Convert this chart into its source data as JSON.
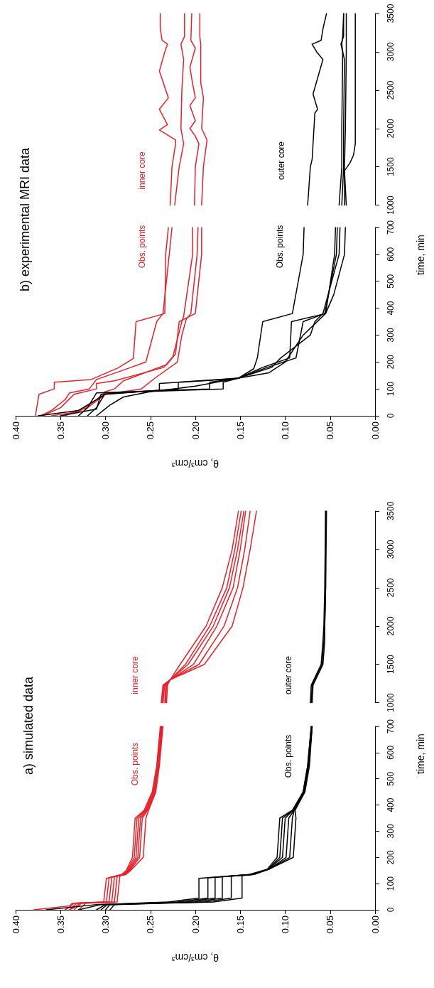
{
  "chart_data": [
    {
      "type": "line",
      "title": "a) simulated data",
      "xlabel": "θ, cm³/cm³",
      "ylabel": "time, min",
      "marker": "none",
      "xlim": [
        0.4,
        0
      ],
      "ylim": [
        0,
        700
      ],
      "yticks": [
        0,
        100,
        200,
        300,
        400,
        500,
        600,
        700
      ],
      "xticks": [
        {
          "value": 0,
          "label": "0.00"
        },
        {
          "value": 0.05,
          "label": "0.05"
        },
        {
          "value": 0.1,
          "label": "0.10"
        },
        {
          "value": 0.15,
          "label": "0.15"
        },
        {
          "value": 0.2,
          "label": "0.20"
        },
        {
          "value": 0.25,
          "label": "0.25"
        },
        {
          "value": 0.3,
          "label": "0.30"
        },
        {
          "value": 0.35,
          "label": "0.35"
        },
        {
          "value": 0.4,
          "label": "0.40"
        }
      ],
      "annotations": [
        "Obs. points",
        "Obs. points"
      ],
      "series": [
        {
          "color": "#e8202a",
          "values": [
            0,
            15,
            25,
            30,
            120,
            135,
            150,
            200,
            350,
            380,
            450,
            550,
            700
          ],
          "x": [
            0.38,
            0.34,
            0.337,
            0.302,
            0.299,
            0.282,
            0.277,
            0.27,
            0.267,
            0.257,
            0.248,
            0.243,
            0.239
          ]
        },
        {
          "color": "#e8202a",
          "values": [
            0,
            15,
            25,
            30,
            122,
            135,
            150,
            200,
            350,
            380,
            450,
            550,
            700
          ],
          "x": [
            0.345,
            0.338,
            0.335,
            0.299,
            0.296,
            0.281,
            0.276,
            0.268,
            0.265,
            0.256,
            0.247,
            0.242,
            0.238
          ]
        },
        {
          "color": "#e8202a",
          "values": [
            0,
            15,
            25,
            30,
            124,
            135,
            150,
            200,
            350,
            380,
            450,
            550,
            700
          ],
          "x": [
            0.34,
            0.335,
            0.332,
            0.296,
            0.293,
            0.28,
            0.275,
            0.266,
            0.263,
            0.255,
            0.246,
            0.242,
            0.238
          ]
        },
        {
          "color": "#e8202a",
          "values": [
            0,
            15,
            25,
            30,
            126,
            135,
            150,
            200,
            350,
            380,
            450,
            550,
            700
          ],
          "x": [
            0.34,
            0.332,
            0.329,
            0.293,
            0.29,
            0.279,
            0.274,
            0.264,
            0.261,
            0.254,
            0.246,
            0.241,
            0.237
          ]
        },
        {
          "color": "#e8202a",
          "values": [
            0,
            15,
            25,
            30,
            128,
            135,
            150,
            200,
            350,
            380,
            450,
            550,
            700
          ],
          "x": [
            0.335,
            0.33,
            0.327,
            0.29,
            0.287,
            0.278,
            0.273,
            0.262,
            0.259,
            0.253,
            0.245,
            0.241,
            0.237
          ]
        },
        {
          "color": "#e8202a",
          "values": [
            0,
            15,
            25,
            30,
            130,
            135,
            150,
            200,
            350,
            380,
            450,
            550,
            700
          ],
          "x": [
            0.33,
            0.325,
            0.322,
            0.287,
            0.284,
            0.277,
            0.272,
            0.258,
            0.255,
            0.252,
            0.244,
            0.24,
            0.236
          ]
        },
        {
          "color": "#000000",
          "values": [
            0,
            20,
            30,
            45,
            120,
            135,
            155,
            200,
            350,
            380,
            450,
            550,
            700
          ],
          "x": [
            0.366,
            0.31,
            0.23,
            0.196,
            0.196,
            0.14,
            0.12,
            0.109,
            0.106,
            0.092,
            0.08,
            0.075,
            0.071
          ]
        },
        {
          "color": "#000000",
          "values": [
            0,
            20,
            30,
            45,
            122,
            135,
            155,
            200,
            350,
            380,
            450,
            550,
            700
          ],
          "x": [
            0.33,
            0.305,
            0.22,
            0.186,
            0.186,
            0.138,
            0.119,
            0.106,
            0.103,
            0.091,
            0.08,
            0.075,
            0.071
          ]
        },
        {
          "color": "#000000",
          "values": [
            0,
            20,
            30,
            45,
            124,
            135,
            155,
            200,
            350,
            380,
            450,
            550,
            700
          ],
          "x": [
            0.31,
            0.3,
            0.21,
            0.178,
            0.178,
            0.137,
            0.119,
            0.103,
            0.1,
            0.091,
            0.079,
            0.074,
            0.071
          ]
        },
        {
          "color": "#000000",
          "values": [
            0,
            20,
            30,
            45,
            126,
            135,
            155,
            200,
            350,
            380,
            450,
            550,
            700
          ],
          "x": [
            0.305,
            0.298,
            0.2,
            0.17,
            0.17,
            0.136,
            0.118,
            0.099,
            0.096,
            0.09,
            0.079,
            0.074,
            0.07
          ]
        },
        {
          "color": "#000000",
          "values": [
            0,
            20,
            30,
            45,
            128,
            135,
            155,
            200,
            350,
            380,
            450,
            550,
            700
          ],
          "x": [
            0.3,
            0.295,
            0.19,
            0.16,
            0.16,
            0.135,
            0.118,
            0.095,
            0.092,
            0.09,
            0.079,
            0.074,
            0.07
          ]
        },
        {
          "color": "#000000",
          "values": [
            0,
            20,
            30,
            45,
            130,
            135,
            155,
            200,
            350,
            380,
            450,
            550,
            700
          ],
          "x": [
            0.295,
            0.29,
            0.18,
            0.148,
            0.148,
            0.135,
            0.118,
            0.091,
            0.088,
            0.089,
            0.078,
            0.073,
            0.07
          ]
        }
      ]
    },
    {
      "type": "line",
      "marker": "none",
      "tick_labels": "y",
      "xlim": [
        0.4,
        0
      ],
      "ylim": [
        1000,
        3500
      ],
      "yticks": [
        1000,
        1500,
        2000,
        2500,
        3000,
        3500
      ],
      "annotations": [
        "inner core",
        "outer core"
      ],
      "series": [
        {
          "color": "#e8202a",
          "values": [
            1000,
            1230,
            1300,
            1500,
            2000,
            2500,
            3000,
            3500
          ],
          "x": [
            0.238,
            0.236,
            0.228,
            0.217,
            0.188,
            0.17,
            0.159,
            0.152
          ]
        },
        {
          "color": "#e8202a",
          "values": [
            1000,
            1230,
            1300,
            1500,
            2000,
            2500,
            3000,
            3500
          ],
          "x": [
            0.237,
            0.235,
            0.228,
            0.211,
            0.184,
            0.165,
            0.156,
            0.149
          ]
        },
        {
          "color": "#e8202a",
          "values": [
            1000,
            1230,
            1300,
            1500,
            2000,
            2500,
            3000,
            3500
          ],
          "x": [
            0.236,
            0.234,
            0.228,
            0.208,
            0.18,
            0.162,
            0.153,
            0.146
          ]
        },
        {
          "color": "#e8202a",
          "values": [
            1000,
            1230,
            1300,
            1500,
            2000,
            2500,
            3000,
            3500
          ],
          "x": [
            0.234,
            0.233,
            0.228,
            0.202,
            0.176,
            0.158,
            0.15,
            0.144
          ]
        },
        {
          "color": "#e8202a",
          "values": [
            1000,
            1230,
            1300,
            1500,
            2000,
            2500,
            3000,
            3500
          ],
          "x": [
            0.233,
            0.232,
            0.228,
            0.196,
            0.168,
            0.153,
            0.145,
            0.139
          ]
        },
        {
          "color": "#e8202a",
          "values": [
            1000,
            1230,
            1300,
            1500,
            2000,
            2500,
            3000,
            3500
          ],
          "x": [
            0.232,
            0.231,
            0.228,
            0.19,
            0.159,
            0.147,
            0.139,
            0.132
          ]
        },
        {
          "color": "#000000",
          "values": [
            1000,
            1230,
            1500,
            1800,
            2000,
            2500,
            3500
          ],
          "x": [
            0.072,
            0.071,
            0.06,
            0.058,
            0.057,
            0.056,
            0.055
          ]
        },
        {
          "color": "#000000",
          "values": [
            1000,
            1230,
            1500,
            1800,
            2000,
            2500,
            3500
          ],
          "x": [
            0.071,
            0.07,
            0.059,
            0.057,
            0.056,
            0.055,
            0.055
          ]
        },
        {
          "color": "#000000",
          "values": [
            1000,
            1230,
            1500,
            1800,
            2000,
            2500,
            3500
          ],
          "x": [
            0.07,
            0.069,
            0.058,
            0.056,
            0.056,
            0.055,
            0.054
          ]
        }
      ]
    },
    {
      "type": "line",
      "title": "b) experimental MRI data",
      "xlabel": "θ, cm³/cm³",
      "ylabel": "time, min",
      "marker": "none",
      "xlim": [
        0.4,
        0
      ],
      "ylim": [
        0,
        700
      ],
      "yticks": [
        0,
        100,
        200,
        300,
        400,
        500,
        600,
        700
      ],
      "xticks": [
        {
          "value": 0,
          "label": "0.00"
        },
        {
          "value": 0.05,
          "label": "0.05"
        },
        {
          "value": 0.1,
          "label": "0.10"
        },
        {
          "value": 0.15,
          "label": "0.15"
        },
        {
          "value": 0.2,
          "label": "0.20"
        },
        {
          "value": 0.25,
          "label": "0.25"
        },
        {
          "value": 0.3,
          "label": "0.30"
        },
        {
          "value": 0.35,
          "label": "0.35"
        },
        {
          "value": 0.4,
          "label": "0.40"
        }
      ],
      "annotations": [
        "Obs. points",
        "Obs. points"
      ],
      "series": [
        {
          "color": "#e8202a",
          "values": [
            0,
            80,
            100,
            125,
            135,
            178,
            213,
            350,
            380,
            600,
            700
          ],
          "x": [
            0.378,
            0.374,
            0.357,
            0.357,
            0.316,
            0.286,
            0.269,
            0.266,
            0.234,
            0.233,
            0.23
          ]
        },
        {
          "color": "#e8202a",
          "values": [
            0,
            20,
            60,
            85,
            100,
            135,
            170,
            200,
            350,
            380,
            600,
            700
          ],
          "x": [
            0.372,
            0.36,
            0.345,
            0.34,
            0.318,
            0.31,
            0.28,
            0.255,
            0.243,
            0.236,
            0.229,
            0.226
          ]
        },
        {
          "color": "#e8202a",
          "values": [
            0,
            30,
            80,
            100,
            120,
            130,
            180,
            220,
            350,
            370,
            600,
            700
          ],
          "x": [
            0.37,
            0.35,
            0.335,
            0.31,
            0.31,
            0.29,
            0.235,
            0.225,
            0.215,
            0.213,
            0.203,
            0.203
          ]
        },
        {
          "color": "#e8202a",
          "values": [
            0,
            15,
            60,
            90,
            100,
            130,
            190,
            230,
            350,
            380,
            600,
            700
          ],
          "x": [
            0.36,
            0.33,
            0.31,
            0.3,
            0.29,
            0.28,
            0.232,
            0.222,
            0.218,
            0.2,
            0.193,
            0.193
          ]
        },
        {
          "color": "#e8202a",
          "values": [
            0,
            15,
            30,
            80,
            100,
            140,
            200,
            300,
            360,
            380,
            600,
            700
          ],
          "x": [
            0.345,
            0.335,
            0.32,
            0.3,
            0.26,
            0.245,
            0.22,
            0.215,
            0.21,
            0.205,
            0.198,
            0.197
          ]
        },
        {
          "color": "#000000",
          "values": [
            0,
            20,
            80,
            95,
            120,
            135,
            140,
            175,
            215,
            350,
            380,
            600,
            700
          ],
          "x": [
            0.375,
            0.33,
            0.3,
            0.24,
            0.24,
            0.17,
            0.152,
            0.135,
            0.131,
            0.125,
            0.092,
            0.08,
            0.079
          ]
        },
        {
          "color": "#000000",
          "values": [
            0,
            25,
            80,
            100,
            125,
            140,
            180,
            215,
            350,
            380,
            600,
            700
          ],
          "x": [
            0.35,
            0.31,
            0.305,
            0.219,
            0.219,
            0.152,
            0.125,
            0.095,
            0.093,
            0.055,
            0.045,
            0.044
          ]
        },
        {
          "color": "#000000",
          "values": [
            0,
            30,
            85,
            100,
            125,
            140,
            180,
            215,
            350,
            380,
            600,
            700
          ],
          "x": [
            0.33,
            0.32,
            0.31,
            0.184,
            0.184,
            0.152,
            0.12,
            0.088,
            0.08,
            0.056,
            0.043,
            0.042
          ]
        },
        {
          "color": "#000000",
          "values": [
            0,
            30,
            85,
            100,
            125,
            140,
            180,
            215,
            300,
            350,
            380,
            600,
            700
          ],
          "x": [
            0.32,
            0.31,
            0.3,
            0.169,
            0.169,
            0.152,
            0.115,
            0.105,
            0.072,
            0.067,
            0.058,
            0.04,
            0.039
          ]
        },
        {
          "color": "#000000",
          "values": [
            0,
            40,
            70,
            90,
            110,
            140,
            160,
            200,
            300,
            380,
            450,
            600,
            700
          ],
          "x": [
            0.31,
            0.295,
            0.28,
            0.25,
            0.2,
            0.152,
            0.118,
            0.1,
            0.08,
            0.055,
            0.046,
            0.034,
            0.033
          ]
        }
      ]
    },
    {
      "type": "line",
      "marker": "none",
      "tick_labels": "y",
      "xlim": [
        0.4,
        0
      ],
      "ylim": [
        1000,
        3500
      ],
      "yticks": [
        1000,
        1500,
        2000,
        2500,
        3000,
        3500
      ],
      "annotations": [
        "inner core",
        "outer core"
      ],
      "series": [
        {
          "color": "#e8202a",
          "values": [
            1000,
            1500,
            1800,
            1850,
            1980,
            2050,
            2250,
            2400,
            2750,
            3000,
            3100,
            3150,
            3300,
            3500
          ],
          "x": [
            0.228,
            0.226,
            0.222,
            0.222,
            0.24,
            0.231,
            0.24,
            0.23,
            0.24,
            0.234,
            0.231,
            0.237,
            0.239,
            0.239
          ]
        },
        {
          "color": "#e8202a",
          "values": [
            1000,
            1500,
            1800,
            2000,
            2500,
            2900,
            3100,
            3200,
            3500
          ],
          "x": [
            0.223,
            0.218,
            0.213,
            0.216,
            0.215,
            0.213,
            0.216,
            0.212,
            0.212
          ]
        },
        {
          "color": "#e8202a",
          "values": [
            1000,
            1500,
            1800,
            1900,
            2000,
            2100,
            2300,
            2400,
            2650,
            2800,
            3050,
            3150,
            3500
          ],
          "x": [
            0.201,
            0.2,
            0.196,
            0.2,
            0.206,
            0.2,
            0.206,
            0.2,
            0.204,
            0.206,
            0.2,
            0.205,
            0.204
          ]
        },
        {
          "color": "#e8202a",
          "values": [
            1000,
            1500,
            1850,
            2000,
            2400,
            2600,
            3100,
            3200,
            3500
          ],
          "x": [
            0.193,
            0.191,
            0.187,
            0.193,
            0.191,
            0.194,
            0.194,
            0.195,
            0.195
          ]
        },
        {
          "color": "#000000",
          "values": [
            1000,
            1500,
            1600,
            1800,
            2000,
            2200,
            2250,
            2450,
            2900,
            3000,
            3100,
            3150,
            3300,
            3500
          ],
          "x": [
            0.075,
            0.072,
            0.07,
            0.069,
            0.068,
            0.067,
            0.064,
            0.069,
            0.058,
            0.065,
            0.07,
            0.06,
            0.058,
            0.054
          ]
        },
        {
          "color": "#000000",
          "values": [
            1000,
            1500,
            2000,
            3000,
            3100,
            3200,
            3500
          ],
          "x": [
            0.04,
            0.037,
            0.037,
            0.036,
            0.037,
            0.036,
            0.035
          ]
        },
        {
          "color": "#000000",
          "values": [
            1000,
            1500,
            2000,
            2900,
            3100,
            3200,
            3500
          ],
          "x": [
            0.037,
            0.035,
            0.035,
            0.034,
            0.038,
            0.035,
            0.035
          ]
        },
        {
          "color": "#000000",
          "values": [
            1000,
            1500,
            2000,
            3000,
            3500
          ],
          "x": [
            0.034,
            0.034,
            0.033,
            0.032,
            0.032
          ]
        },
        {
          "color": "#000000",
          "values": [
            1000,
            1450,
            1550,
            1650,
            1800,
            3500
          ],
          "x": [
            0.032,
            0.034,
            0.028,
            0.024,
            0.022,
            0.022
          ]
        }
      ]
    }
  ]
}
